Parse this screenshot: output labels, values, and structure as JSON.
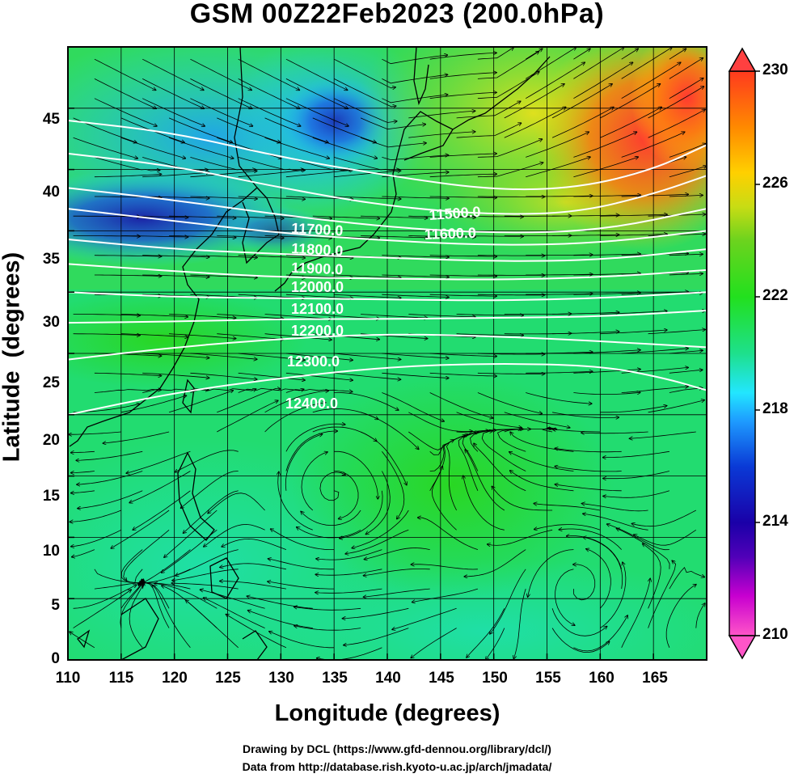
{
  "title": "GSM 00Z22Feb2023 (200.0hPa)",
  "axes": {
    "xlabel": "Longitude (degrees)",
    "ylabel": "Latitude  (degrees)",
    "xlim": [
      110,
      170
    ],
    "ylim": [
      0,
      50
    ],
    "xticks": [
      "110",
      "115",
      "120",
      "125",
      "130",
      "135",
      "140",
      "145",
      "150",
      "155",
      "160",
      "165"
    ],
    "yticks": [
      "0",
      "5",
      "10",
      "15",
      "20",
      "25",
      "30",
      "35",
      "40",
      "45"
    ],
    "grid": true
  },
  "colorbar": {
    "min": 210,
    "max": 230,
    "ticks": [
      "230",
      "226",
      "222",
      "218",
      "214",
      "210"
    ],
    "colors": [
      "#ff55c8",
      "#aa00cc",
      "#1a00a8",
      "#0a3ad6",
      "#1e9bff",
      "#22e6ff",
      "#1ee08c",
      "#22e01e",
      "#6cd31e",
      "#c8dc14",
      "#ffd000",
      "#ff8a00",
      "#ff3a1e",
      "#ff4040"
    ],
    "extend": "both"
  },
  "contour_labels": [
    "11500.0",
    "11600.0",
    "11700.0",
    "11800.0",
    "11900.0",
    "12000.0",
    "12100.0",
    "12200.0",
    "12300.0",
    "12400.0"
  ],
  "credits": {
    "drawing": "Drawing by DCL (https://www.gfd-dennou.org/library/dcl/)",
    "data": "Data from http://database.rish.kyoto-u.ac.jp/arch/jmadata/"
  },
  "colors": {
    "contour": "#ffffff",
    "streamline": "#000000",
    "coast": "#000000"
  }
}
